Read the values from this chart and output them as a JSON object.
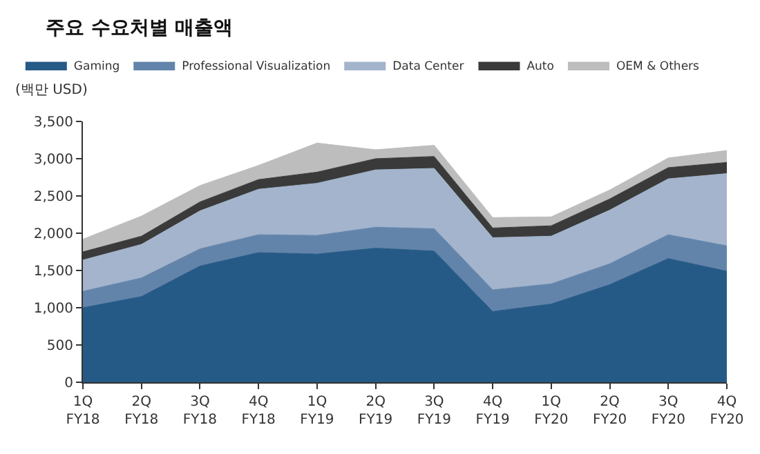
{
  "chart_data": {
    "type": "area",
    "stacked": true,
    "title": "주요 수요처별 매출액",
    "ylabel": "(백만 USD)",
    "categories": [
      "1Q\nFY18",
      "2Q\nFY18",
      "3Q\nFY18",
      "4Q\nFY18",
      "1Q\nFY19",
      "2Q\nFY19",
      "3Q\nFY19",
      "4Q\nFY19",
      "1Q\nFY20",
      "2Q\nFY20",
      "3Q\nFY20",
      "4Q\nFY20"
    ],
    "series": [
      {
        "name": "Gaming",
        "color": "#255a86",
        "values": [
          1000,
          1150,
          1560,
          1740,
          1720,
          1800,
          1760,
          950,
          1050,
          1310,
          1660,
          1490
        ]
      },
      {
        "name": "Professional Visualization",
        "color": "#6384aa",
        "values": [
          220,
          250,
          230,
          240,
          250,
          280,
          300,
          290,
          270,
          280,
          320,
          340
        ]
      },
      {
        "name": "Data Center",
        "color": "#a3b4cc",
        "values": [
          420,
          450,
          510,
          610,
          700,
          770,
          810,
          700,
          640,
          720,
          750,
          970
        ]
      },
      {
        "name": "Auto",
        "color": "#3a3a3a",
        "values": [
          110,
          110,
          120,
          130,
          150,
          150,
          160,
          130,
          140,
          150,
          150,
          150
        ]
      },
      {
        "name": "OEM & Others",
        "color": "#bdbdbd",
        "values": [
          170,
          270,
          220,
          190,
          390,
          120,
          150,
          140,
          120,
          120,
          130,
          160
        ]
      }
    ],
    "ylim": [
      0,
      3500
    ],
    "yticks": [
      0,
      {
        "value": 500,
        "label": "500"
      },
      {
        "value": 1000,
        "label": "1,000"
      },
      {
        "value": 1500,
        "label": "1,500"
      },
      {
        "value": 2000,
        "label": "2,000"
      },
      {
        "value": 2500,
        "label": "2,500"
      },
      {
        "value": 3000,
        "label": "3,000"
      },
      {
        "value": 3500,
        "label": "3,500"
      }
    ],
    "grid": false,
    "legend": "top"
  }
}
